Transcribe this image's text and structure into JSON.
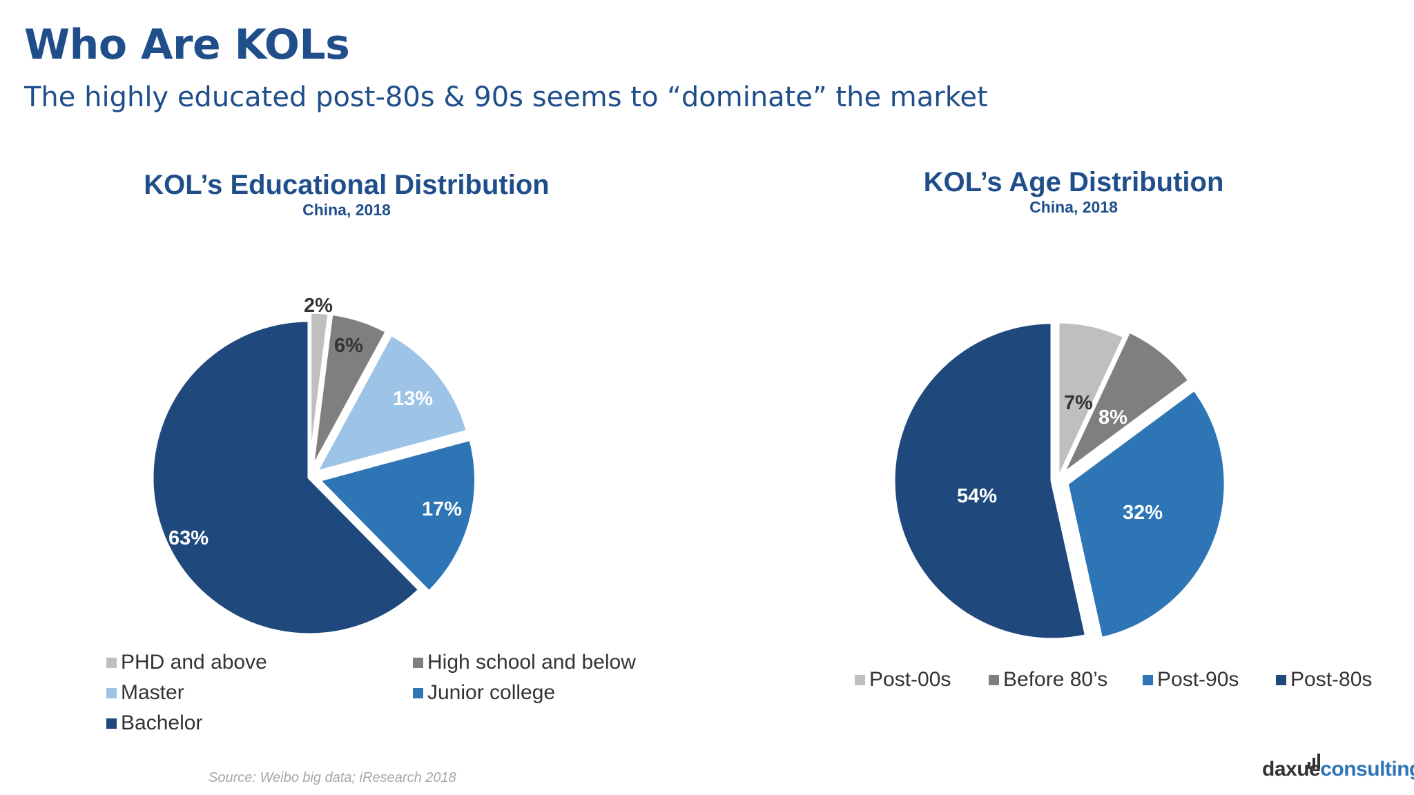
{
  "page": {
    "title": "Who Are KOLs",
    "subtitle": "The highly educated post-80s & 90s seems to “dominate” the market",
    "source": "Source: Weibo big data; iResearch 2018",
    "brand": {
      "part1": "daxue",
      "part2": "consulting"
    }
  },
  "chart_data": [
    {
      "type": "pie",
      "title": "KOL’s Educational Distribution",
      "subtitle": "China, 2018",
      "legend_position": "bottom",
      "slices": [
        {
          "label": "PHD and above",
          "value": 2,
          "display": "2%",
          "color": "#bfbfbf",
          "label_color": "#333333"
        },
        {
          "label": "High school and below",
          "value": 6,
          "display": "6%",
          "color": "#7f7f7f",
          "label_color": "#333333"
        },
        {
          "label": "Master",
          "value": 13,
          "display": "13%",
          "color": "#9dc3e6",
          "label_color": "#ffffff"
        },
        {
          "label": "Junior college",
          "value": 17,
          "display": "17%",
          "color": "#2e75b6",
          "label_color": "#ffffff"
        },
        {
          "label": "Bachelor",
          "value": 63,
          "display": "63%",
          "color": "#1f497d",
          "label_color": "#ffffff"
        }
      ]
    },
    {
      "type": "pie",
      "title": "KOL’s Age Distribution",
      "subtitle": "China, 2018",
      "legend_position": "bottom",
      "slices": [
        {
          "label": "Post-00s",
          "value": 7,
          "display": "7%",
          "color": "#bfbfbf",
          "label_color": "#333333"
        },
        {
          "label": "Before 80’s",
          "value": 8,
          "display": "8%",
          "color": "#7f7f7f",
          "label_color": "#ffffff"
        },
        {
          "label": "Post-90s",
          "value": 32,
          "display": "32%",
          "color": "#2e75b6",
          "label_color": "#ffffff"
        },
        {
          "label": "Post-80s",
          "value": 54,
          "display": "54%",
          "color": "#1f497d",
          "label_color": "#ffffff"
        }
      ]
    }
  ]
}
